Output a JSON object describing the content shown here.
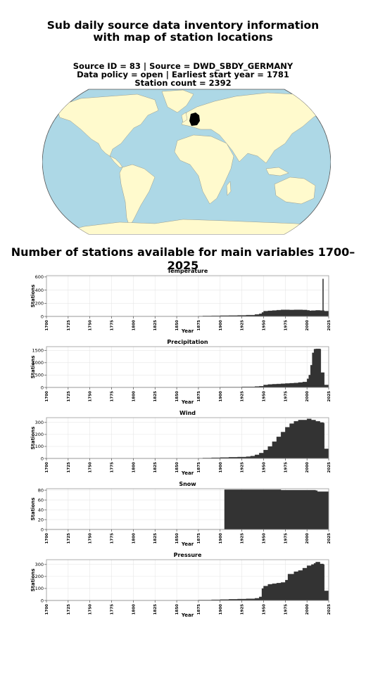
{
  "header": {
    "title_line1": "Sub daily source data inventory information",
    "title_line2": "with map of station locations",
    "info_line1": "Source ID = 83 | Source = DWD_SBDY_GERMANY",
    "info_line2": "Data policy = open | Earliest start year = 1781",
    "info_line3": "Station count = 2392"
  },
  "map": {
    "projection": "robinson",
    "ocean_color": "#add8e6",
    "land_color": "#fffacd",
    "station_color": "#000000",
    "highlighted_region": "Germany"
  },
  "section_title": "Number of stations available for main variables 1700–2025",
  "chart_data": [
    {
      "type": "area",
      "title": "Temperature",
      "xlabel": "Year",
      "ylabel": "Stations",
      "xlim": [
        1700,
        2025
      ],
      "ylim": [
        0,
        620
      ],
      "yticks": [
        0,
        200,
        400,
        600
      ],
      "xticks": [
        1700,
        1725,
        1750,
        1775,
        1800,
        1825,
        1850,
        1875,
        1900,
        1925,
        1950,
        1975,
        2000,
        2025
      ],
      "fill_color": "#333333",
      "points": [
        [
          1700,
          0
        ],
        [
          1781,
          1
        ],
        [
          1800,
          2
        ],
        [
          1850,
          3
        ],
        [
          1875,
          5
        ],
        [
          1880,
          8
        ],
        [
          1890,
          10
        ],
        [
          1900,
          12
        ],
        [
          1910,
          14
        ],
        [
          1920,
          16
        ],
        [
          1930,
          20
        ],
        [
          1940,
          30
        ],
        [
          1945,
          40
        ],
        [
          1948,
          60
        ],
        [
          1950,
          80
        ],
        [
          1955,
          85
        ],
        [
          1960,
          90
        ],
        [
          1965,
          95
        ],
        [
          1970,
          100
        ],
        [
          1975,
          100
        ],
        [
          1980,
          98
        ],
        [
          1985,
          100
        ],
        [
          1990,
          100
        ],
        [
          1995,
          98
        ],
        [
          2000,
          92
        ],
        [
          2003,
          85
        ],
        [
          2005,
          88
        ],
        [
          2010,
          92
        ],
        [
          2015,
          90
        ],
        [
          2017,
          90
        ],
        [
          2018,
          570
        ],
        [
          2019,
          90
        ],
        [
          2020,
          80
        ],
        [
          2025,
          80
        ]
      ]
    },
    {
      "type": "area",
      "title": "Precipitation",
      "xlabel": "Year",
      "ylabel": "Stations",
      "xlim": [
        1700,
        2025
      ],
      "ylim": [
        0,
        1650
      ],
      "yticks": [
        0,
        500,
        1000,
        1500
      ],
      "xticks": [
        1700,
        1725,
        1750,
        1775,
        1800,
        1825,
        1850,
        1875,
        1900,
        1925,
        1950,
        1975,
        2000,
        2025
      ],
      "fill_color": "#333333",
      "points": [
        [
          1700,
          0
        ],
        [
          1800,
          2
        ],
        [
          1850,
          5
        ],
        [
          1875,
          10
        ],
        [
          1900,
          15
        ],
        [
          1925,
          25
        ],
        [
          1940,
          40
        ],
        [
          1945,
          50
        ],
        [
          1950,
          100
        ],
        [
          1955,
          120
        ],
        [
          1960,
          130
        ],
        [
          1965,
          140
        ],
        [
          1970,
          150
        ],
        [
          1975,
          160
        ],
        [
          1980,
          170
        ],
        [
          1985,
          180
        ],
        [
          1990,
          200
        ],
        [
          1995,
          220
        ],
        [
          2000,
          350
        ],
        [
          2002,
          500
        ],
        [
          2004,
          900
        ],
        [
          2006,
          1400
        ],
        [
          2008,
          1550
        ],
        [
          2010,
          1560
        ],
        [
          2015,
          1550
        ],
        [
          2016,
          600
        ],
        [
          2020,
          100
        ],
        [
          2025,
          80
        ]
      ]
    },
    {
      "type": "area",
      "title": "Wind",
      "xlabel": "Year",
      "ylabel": "Stations",
      "xlim": [
        1700,
        2025
      ],
      "ylim": [
        0,
        340
      ],
      "yticks": [
        0,
        100,
        200,
        300
      ],
      "xticks": [
        1700,
        1725,
        1750,
        1775,
        1800,
        1825,
        1850,
        1875,
        1900,
        1925,
        1950,
        1975,
        2000,
        2025
      ],
      "fill_color": "#333333",
      "points": [
        [
          1700,
          0
        ],
        [
          1800,
          0
        ],
        [
          1850,
          1
        ],
        [
          1875,
          2
        ],
        [
          1880,
          4
        ],
        [
          1890,
          6
        ],
        [
          1900,
          8
        ],
        [
          1910,
          10
        ],
        [
          1920,
          12
        ],
        [
          1930,
          15
        ],
        [
          1935,
          20
        ],
        [
          1940,
          30
        ],
        [
          1945,
          45
        ],
        [
          1950,
          70
        ],
        [
          1955,
          100
        ],
        [
          1960,
          140
        ],
        [
          1965,
          180
        ],
        [
          1970,
          220
        ],
        [
          1975,
          260
        ],
        [
          1980,
          290
        ],
        [
          1985,
          310
        ],
        [
          1990,
          320
        ],
        [
          1995,
          320
        ],
        [
          2000,
          330
        ],
        [
          2005,
          320
        ],
        [
          2010,
          310
        ],
        [
          2015,
          300
        ],
        [
          2019,
          295
        ],
        [
          2020,
          80
        ],
        [
          2025,
          80
        ]
      ]
    },
    {
      "type": "area",
      "title": "Snow",
      "xlabel": "Year",
      "ylabel": "Stations",
      "xlim": [
        1700,
        2025
      ],
      "ylim": [
        0,
        83
      ],
      "yticks": [
        0,
        20,
        40,
        60,
        80
      ],
      "xticks": [
        1700,
        1725,
        1750,
        1775,
        1800,
        1825,
        1850,
        1875,
        1900,
        1925,
        1950,
        1975,
        2000,
        2025
      ],
      "fill_color": "#333333",
      "points": [
        [
          1700,
          0
        ],
        [
          1904,
          0
        ],
        [
          1905,
          81
        ],
        [
          1960,
          81
        ],
        [
          1970,
          80
        ],
        [
          1990,
          80
        ],
        [
          2000,
          80
        ],
        [
          2010,
          79
        ],
        [
          2012,
          77
        ],
        [
          2025,
          77
        ]
      ]
    },
    {
      "type": "area",
      "title": "Pressure",
      "xlabel": "Year",
      "ylabel": "Stations",
      "xlim": [
        1700,
        2025
      ],
      "ylim": [
        0,
        340
      ],
      "yticks": [
        0,
        100,
        200,
        300
      ],
      "xticks": [
        1700,
        1725,
        1750,
        1775,
        1800,
        1825,
        1850,
        1875,
        1900,
        1925,
        1950,
        1975,
        2000,
        2025
      ],
      "fill_color": "#333333",
      "points": [
        [
          1700,
          0
        ],
        [
          1800,
          1
        ],
        [
          1850,
          2
        ],
        [
          1875,
          4
        ],
        [
          1890,
          6
        ],
        [
          1900,
          8
        ],
        [
          1910,
          10
        ],
        [
          1920,
          12
        ],
        [
          1930,
          14
        ],
        [
          1940,
          18
        ],
        [
          1945,
          30
        ],
        [
          1948,
          100
        ],
        [
          1950,
          120
        ],
        [
          1955,
          135
        ],
        [
          1960,
          140
        ],
        [
          1965,
          145
        ],
        [
          1970,
          150
        ],
        [
          1975,
          170
        ],
        [
          1978,
          220
        ],
        [
          1985,
          240
        ],
        [
          1990,
          250
        ],
        [
          1995,
          270
        ],
        [
          2000,
          290
        ],
        [
          2005,
          300
        ],
        [
          2008,
          310
        ],
        [
          2010,
          320
        ],
        [
          2015,
          305
        ],
        [
          2019,
          300
        ],
        [
          2020,
          80
        ],
        [
          2025,
          80
        ]
      ]
    }
  ]
}
